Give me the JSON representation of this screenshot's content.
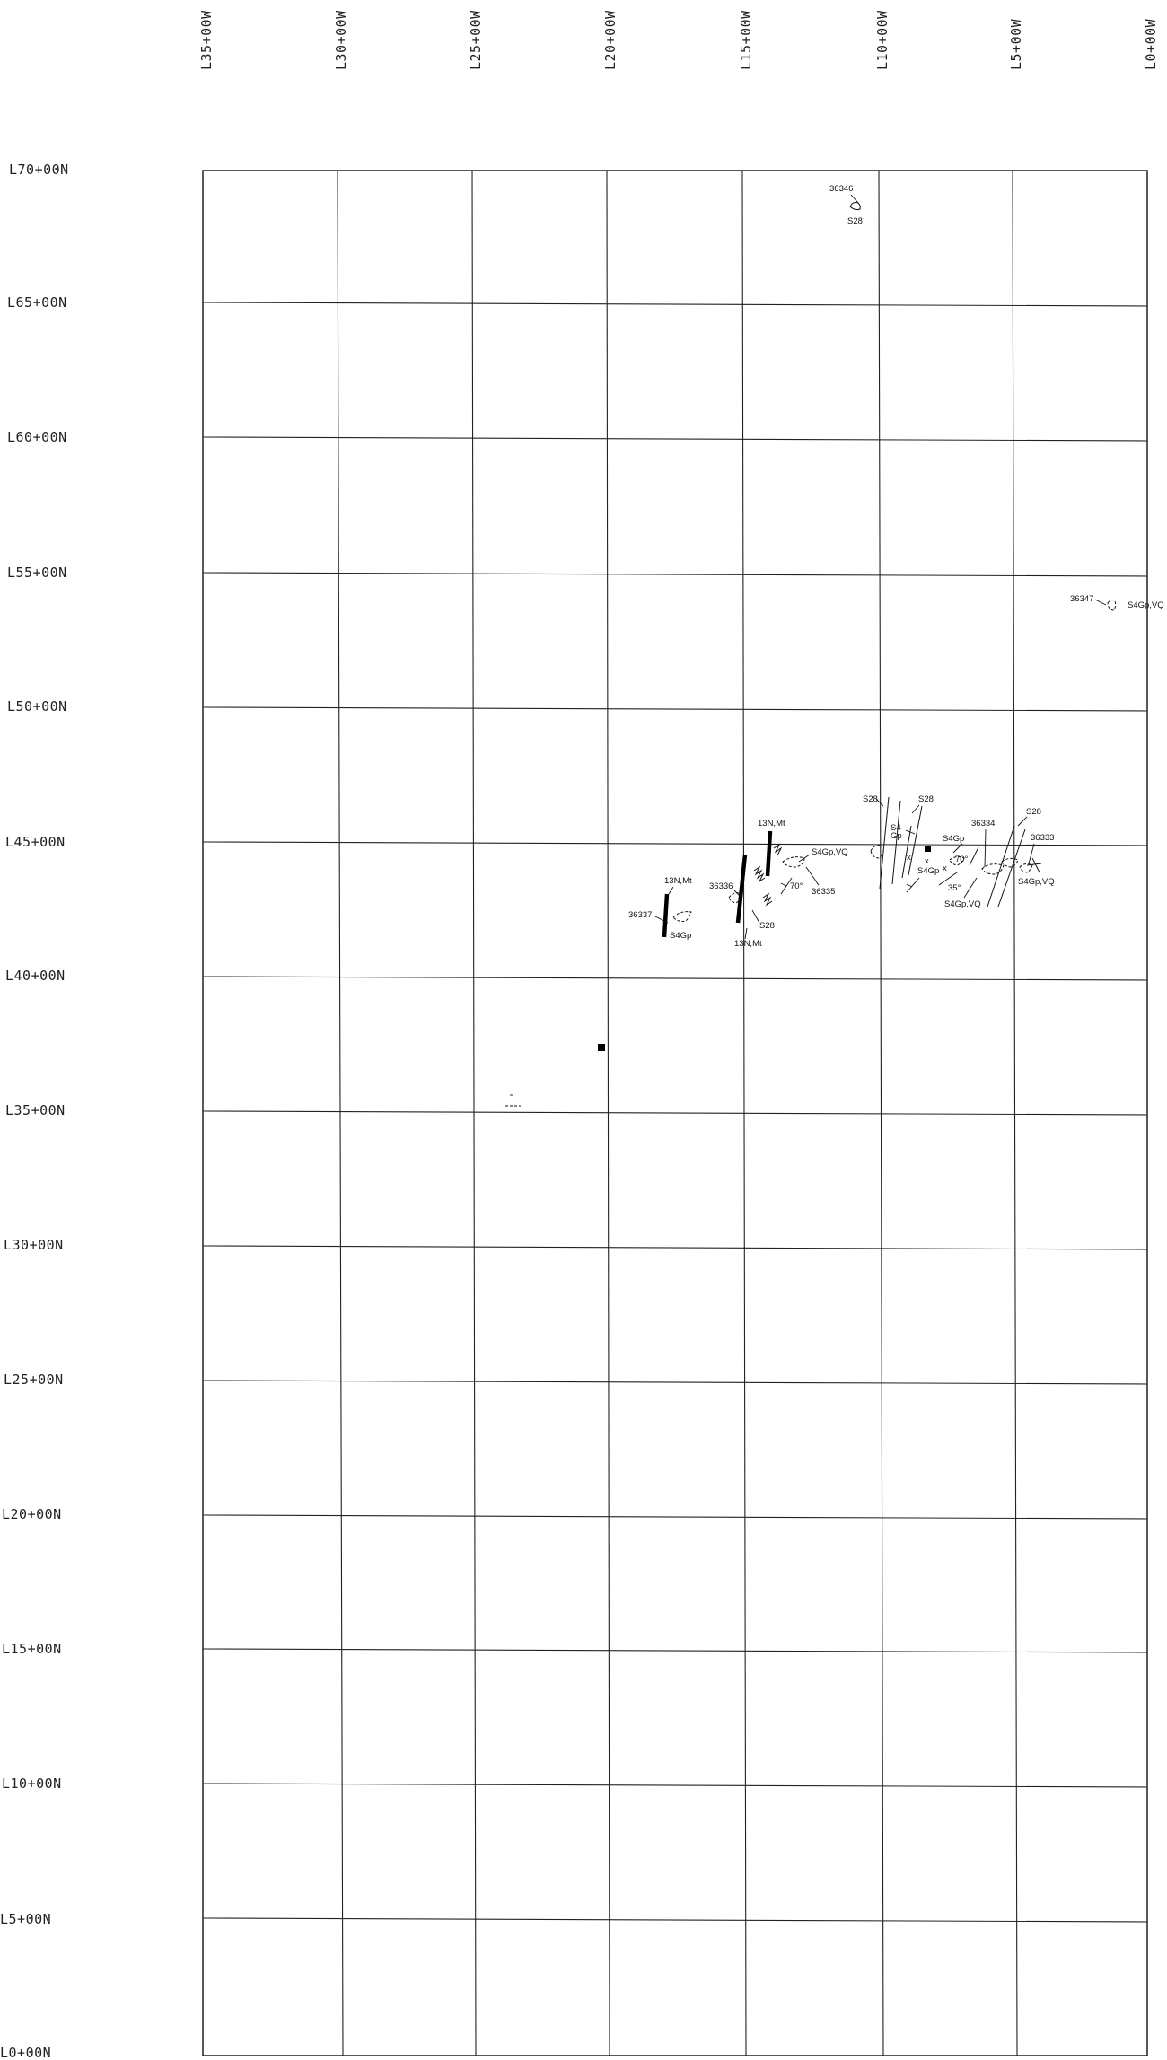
{
  "map": {
    "easting_lines": [
      "L35+00W",
      "L30+00W",
      "L25+00W",
      "L20+00W",
      "L15+00W",
      "L10+00W",
      "L5+00W",
      "L0+00W"
    ],
    "northing_lines": [
      "L70+00N",
      "L65+00N",
      "L60+00N",
      "L55+00N",
      "L50+00N",
      "L45+00N",
      "L40+00N",
      "L35+00N",
      "L30+00N",
      "L25+00N",
      "L20+00N",
      "L15+00N",
      "L10+00N",
      "L5+00N",
      "L0+00N"
    ]
  },
  "samples": {
    "s36346": {
      "id": "36346",
      "code": "S28"
    },
    "s36347": {
      "id": "36347",
      "code": "S4Gp,VQ"
    },
    "s36337": {
      "id": "36337",
      "code_top": "13N,Mt",
      "code_bottom": "S4Gp"
    },
    "s36336": {
      "id": "36336",
      "code_top": "13N,Mt",
      "code_bottom": "13N,Mt",
      "code_side": "S28"
    },
    "s36335": {
      "id": "36335",
      "code": "S4Gp,VQ",
      "dip": "70°"
    },
    "cluster_west": {
      "s28_a": "S28",
      "s28_b": "S28",
      "s4": "S4",
      "gp": "Gp",
      "s4gp": "S4Gp",
      "s4gp_b": "S4Gp",
      "dip_70": "70°",
      "dip_35": "35°",
      "s4gp_vq": "S4Gp,VQ"
    },
    "s36334": {
      "id": "36334"
    },
    "s36333": {
      "id": "36333",
      "code_top": "S28",
      "code_bottom": "S4Gp,VQ"
    }
  }
}
